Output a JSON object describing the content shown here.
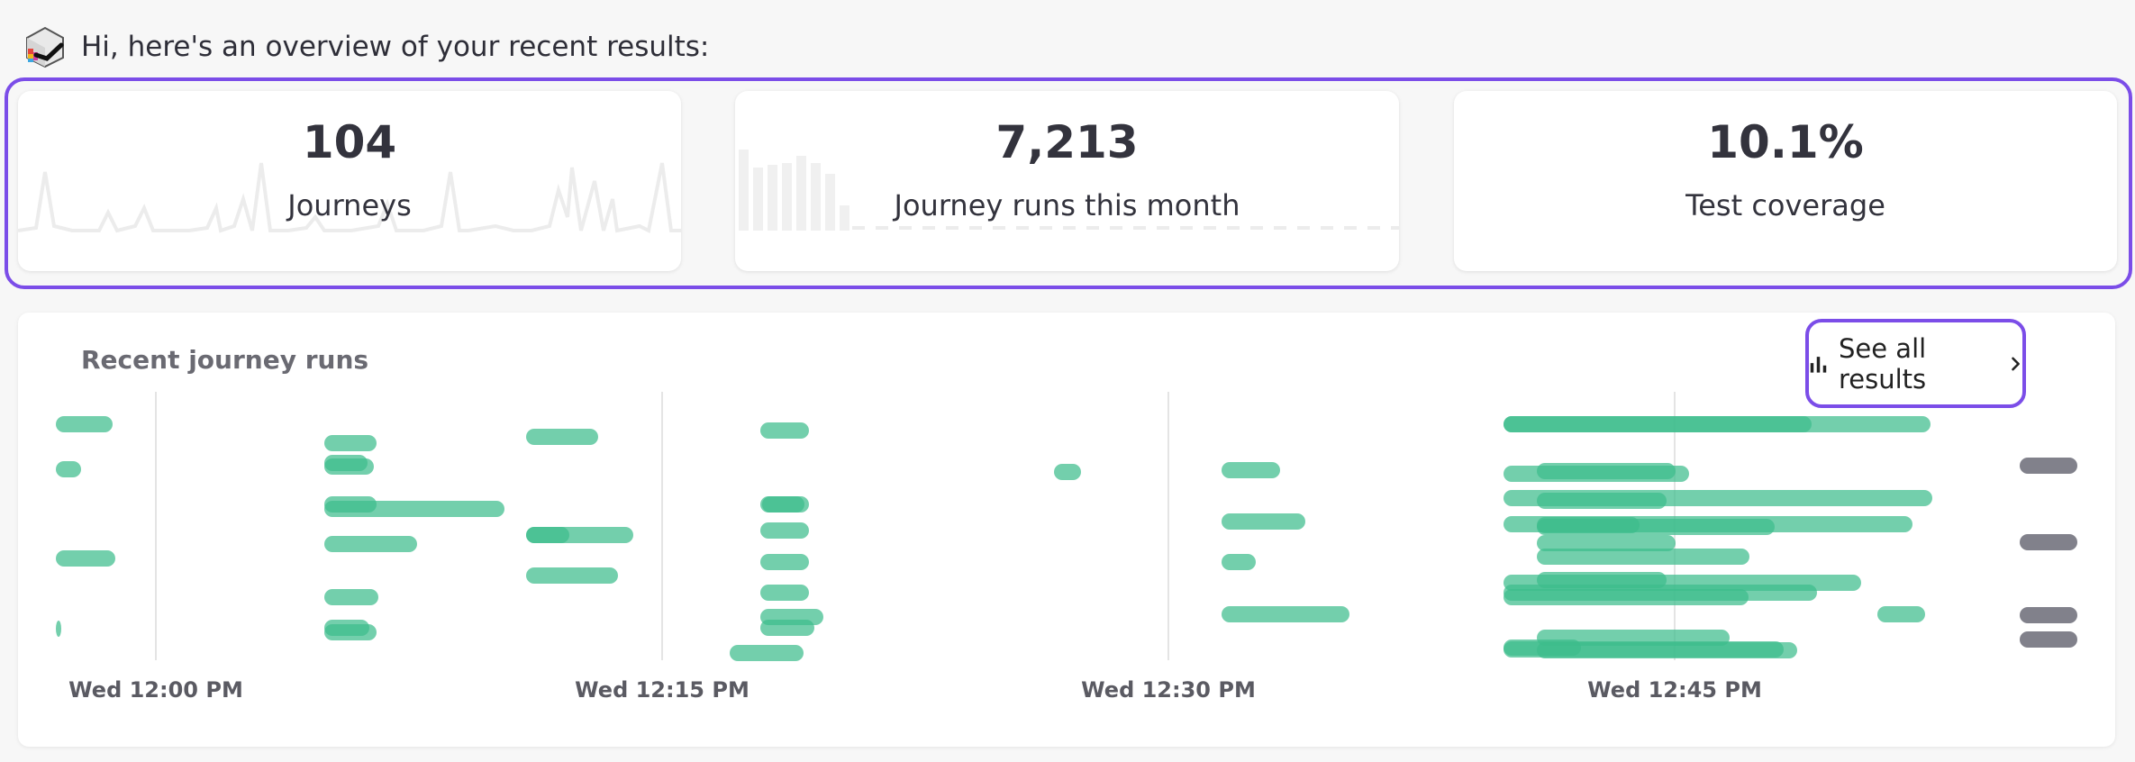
{
  "greeting": {
    "text": "Hi, here's an overview of your recent results:"
  },
  "stats": [
    {
      "value": "104",
      "label": "Journeys"
    },
    {
      "value": "7,213",
      "label": "Journey runs this month"
    },
    {
      "value": "10.1%",
      "label": "Test coverage"
    }
  ],
  "recent_runs": {
    "title": "Recent journey runs",
    "see_all_label": "See all results",
    "time_ticks": [
      "Wed 12:00 PM",
      "Wed 12:15 PM",
      "Wed 12:30 PM",
      "Wed 12:45 PM"
    ]
  },
  "colors": {
    "accent_outline": "#7b4de8",
    "run_green": "#3dbd8c",
    "run_gray": "#7a7a85"
  },
  "icons": {
    "logo": "app-logo-icon",
    "chart": "bar-chart-icon",
    "chevron": "chevron-right-icon"
  }
}
